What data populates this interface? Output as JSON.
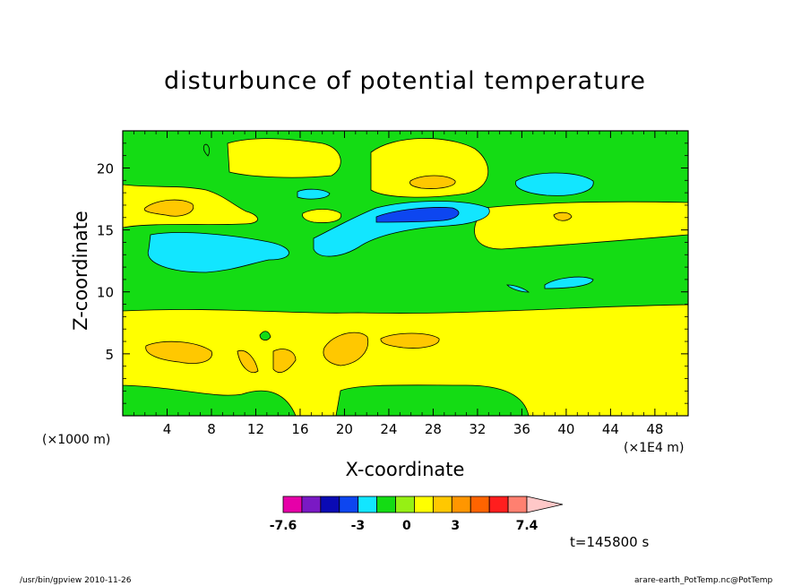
{
  "chart_data": {
    "type": "heatmap",
    "title": "disturbunce of potential temperature",
    "xlabel": "X-coordinate",
    "ylabel": "Z-coordinate",
    "x_unit_left": "(×1000 m)",
    "x_unit_right": "(×1E4 m)",
    "x_ticks": [
      "4",
      "8",
      "12",
      "16",
      "20",
      "24",
      "28",
      "32",
      "36",
      "40",
      "44",
      "48"
    ],
    "x_tick_values": [
      4,
      8,
      12,
      16,
      20,
      24,
      28,
      32,
      36,
      40,
      44,
      48
    ],
    "y_ticks": [
      "5",
      "10",
      "15",
      "20"
    ],
    "y_tick_values": [
      5,
      10,
      15,
      20
    ],
    "xlim": [
      0,
      51
    ],
    "ylim": [
      0,
      23
    ],
    "colorbar": {
      "colors": [
        "#e600a8",
        "#7a19c4",
        "#0a0ab4",
        "#0d46f0",
        "#12e6ff",
        "#14dc14",
        "#96f014",
        "#ffff00",
        "#ffc800",
        "#ff9600",
        "#ff6400",
        "#ff1e1e",
        "#ff8070",
        "#ffc8c8"
      ],
      "tick_labels": [
        "-7.6",
        "-3",
        "0",
        "3",
        "7.4"
      ],
      "tick_values": [
        -7.6,
        -3,
        0,
        3,
        7.4
      ]
    },
    "time_label": "t=145800 s"
  },
  "footer": {
    "left": "/usr/bin/gpview   2010-11-26",
    "right": "arare-earth_PotTemp.nc@PotTemp"
  }
}
